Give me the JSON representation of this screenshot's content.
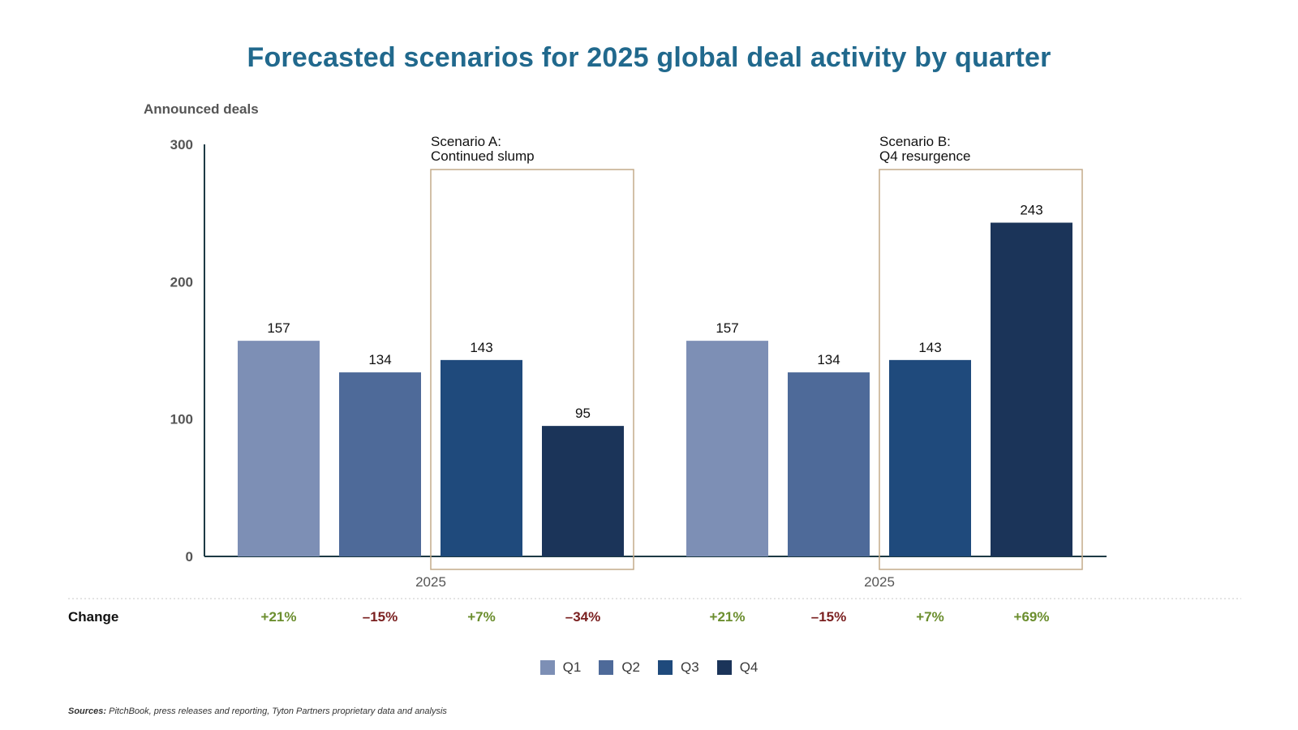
{
  "title": "Forecasted scenarios for 2025 global deal activity by quarter",
  "sources_label": "Sources:",
  "sources_text": "PitchBook, press releases and reporting, Tyton Partners proprietary data and analysis",
  "change_label": "Change",
  "colors": {
    "title": "#21698d",
    "Q1": "#7d8fb5",
    "Q2": "#4e6a99",
    "Q3": "#1f4a7c",
    "Q4": "#1b3459",
    "positive": "#6b8e2e",
    "negative": "#7a1f1f",
    "scenario_box": "#c4ab8a",
    "axis": "#1d3a44"
  },
  "chart_data": {
    "type": "bar",
    "ylabel": "Announced deals",
    "ylim": [
      0,
      300
    ],
    "yticks": [
      0,
      100,
      200,
      300
    ],
    "series_names": [
      "Q1",
      "Q2",
      "Q3",
      "Q4"
    ],
    "groups": [
      {
        "category": "2025",
        "scenario_title": [
          "Scenario A:",
          "Continued slump"
        ],
        "values": [
          157,
          134,
          143,
          95
        ],
        "changes": [
          "+21%",
          "–15%",
          "+7%",
          "–34%"
        ]
      },
      {
        "category": "2025",
        "scenario_title": [
          "Scenario B:",
          "Q4 resurgence"
        ],
        "values": [
          157,
          134,
          143,
          243
        ],
        "changes": [
          "+21%",
          "–15%",
          "+7%",
          "+69%"
        ]
      }
    ],
    "grid": false,
    "legend_position": "bottom-center"
  }
}
